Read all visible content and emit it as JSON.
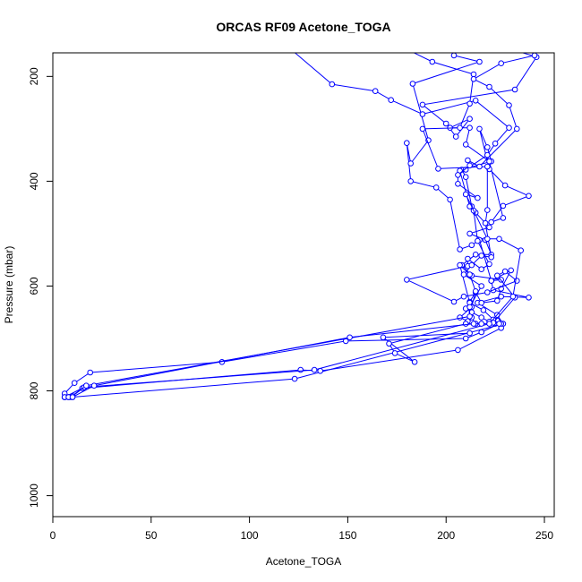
{
  "chart_data": {
    "type": "line",
    "title": "ORCAS RF09 Acetone_TOGA",
    "xlabel": "Acetone_TOGA",
    "ylabel": "Pressure (mbar)",
    "xlim": [
      0,
      255
    ],
    "ylim": [
      1040,
      155
    ],
    "y_reversed": true,
    "x_ticks": [
      0,
      50,
      100,
      150,
      200,
      250
    ],
    "y_ticks": [
      200,
      400,
      600,
      800,
      1000
    ],
    "grid": false,
    "color": "#0000ff",
    "series": [
      {
        "points": [
          [
            6,
            812
          ],
          [
            8,
            812
          ],
          [
            10,
            812
          ],
          [
            123,
            777
          ],
          [
            229,
            672
          ],
          [
            226,
            655
          ],
          [
            216,
            632
          ],
          [
            228,
            620
          ],
          [
            242,
            622
          ],
          [
            224,
            608
          ],
          [
            223,
            590
          ],
          [
            228,
            588
          ],
          [
            213,
            580
          ],
          [
            208,
            560
          ],
          [
            215,
            540
          ],
          [
            223,
            540
          ],
          [
            220,
            512
          ],
          [
            212,
            500
          ],
          [
            222,
            488
          ],
          [
            215,
            460
          ],
          [
            213,
            448
          ],
          [
            210,
            392
          ],
          [
            208,
            378
          ],
          [
            223,
            362
          ],
          [
            221,
            335
          ],
          [
            217,
            300
          ],
          [
            222,
            377
          ],
          [
            230,
            408
          ],
          [
            242,
            428
          ],
          [
            229,
            447
          ],
          [
            223,
            478
          ],
          [
            229,
            470
          ],
          [
            222,
            362
          ],
          [
            210,
            330
          ],
          [
            212,
            298
          ],
          [
            202,
            298
          ],
          [
            212,
            281
          ],
          [
            205,
            315
          ],
          [
            200,
            290
          ],
          [
            188,
            254
          ],
          [
            235,
            225
          ],
          [
            246,
            163
          ],
          [
            233,
            148
          ]
        ]
      },
      {
        "points": [
          [
            6,
            812
          ],
          [
            9,
            812
          ],
          [
            15,
            795
          ],
          [
            126,
            760
          ],
          [
            136,
            762
          ],
          [
            206,
            722
          ],
          [
            228,
            680
          ],
          [
            228,
            672
          ],
          [
            225,
            672
          ],
          [
            226,
            666
          ],
          [
            222,
            668
          ],
          [
            218,
            660
          ],
          [
            213,
            650
          ],
          [
            210,
            643
          ],
          [
            212,
            630
          ],
          [
            215,
            612
          ],
          [
            218,
            632
          ],
          [
            226,
            628
          ],
          [
            228,
            605
          ],
          [
            233,
            570
          ],
          [
            223,
            590
          ],
          [
            217,
            512
          ],
          [
            213,
            522
          ],
          [
            207,
            530
          ],
          [
            202,
            435
          ],
          [
            195,
            412
          ],
          [
            182,
            400
          ],
          [
            180,
            327
          ],
          [
            182,
            366
          ],
          [
            191,
            322
          ],
          [
            183,
            214
          ],
          [
            217,
            172
          ],
          [
            204,
            160
          ]
        ]
      },
      {
        "points": [
          [
            6,
            805
          ],
          [
            11,
            785
          ],
          [
            19,
            765
          ],
          [
            86,
            745
          ],
          [
            149,
            705
          ],
          [
            210,
            700
          ],
          [
            218,
            688
          ],
          [
            227,
            672
          ],
          [
            224,
            664
          ],
          [
            219,
            646
          ],
          [
            212,
            632
          ],
          [
            207,
            560
          ],
          [
            212,
            578
          ],
          [
            215,
            610
          ],
          [
            213,
            640
          ],
          [
            207,
            660
          ],
          [
            211,
            667
          ],
          [
            213,
            660
          ],
          [
            215,
            672
          ],
          [
            210,
            672
          ],
          [
            171,
            710
          ],
          [
            174,
            728
          ],
          [
            184,
            745
          ],
          [
            168,
            698
          ],
          [
            212,
            690
          ]
        ]
      },
      {
        "points": [
          [
            6,
            812
          ],
          [
            16,
            793
          ],
          [
            133,
            760
          ],
          [
            224,
            670
          ],
          [
            235,
            622
          ],
          [
            226,
            580
          ],
          [
            230,
            572
          ],
          [
            236,
            590
          ],
          [
            221,
            612
          ],
          [
            209,
            620
          ],
          [
            204,
            630
          ],
          [
            180,
            588
          ],
          [
            211,
            562
          ],
          [
            211,
            548
          ],
          [
            218,
            568
          ],
          [
            222,
            558
          ],
          [
            216,
            514
          ],
          [
            214,
            456
          ],
          [
            212,
            448
          ],
          [
            207,
            380
          ],
          [
            210,
            378
          ],
          [
            221,
            350
          ],
          [
            225,
            328
          ],
          [
            232,
            298
          ],
          [
            215,
            246
          ],
          [
            188,
            272
          ],
          [
            172,
            245
          ],
          [
            164,
            228
          ],
          [
            142,
            215
          ],
          [
            121,
            148
          ]
        ]
      },
      {
        "points": [
          [
            6,
            812
          ],
          [
            8,
            812
          ],
          [
            10,
            810
          ],
          [
            17,
            790
          ],
          [
            212,
            658
          ],
          [
            212,
            640
          ],
          [
            218,
            600
          ],
          [
            209,
            578
          ],
          [
            213,
            560
          ],
          [
            218,
            542
          ],
          [
            223,
            545
          ],
          [
            220,
            480
          ],
          [
            221,
            455
          ],
          [
            221,
            372
          ],
          [
            196,
            376
          ],
          [
            188,
            300
          ],
          [
            207,
            298
          ],
          [
            212,
            252
          ],
          [
            214,
            196
          ],
          [
            193,
            172
          ],
          [
            181,
            150
          ]
        ]
      },
      {
        "points": [
          [
            8,
            812
          ],
          [
            10,
            812
          ],
          [
            21,
            790
          ],
          [
            151,
            698
          ],
          [
            214,
            672
          ],
          [
            218,
            672
          ],
          [
            222,
            672
          ],
          [
            234,
            620
          ],
          [
            238,
            532
          ],
          [
            227,
            510
          ],
          [
            221,
            510
          ],
          [
            210,
            425
          ],
          [
            216,
            432
          ],
          [
            206,
            405
          ],
          [
            206,
            388
          ],
          [
            212,
            370
          ],
          [
            211,
            360
          ],
          [
            217,
            372
          ],
          [
            236,
            300
          ],
          [
            232,
            255
          ],
          [
            222,
            220
          ],
          [
            214,
            205
          ],
          [
            228,
            175
          ],
          [
            245,
            160
          ]
        ]
      }
    ]
  }
}
